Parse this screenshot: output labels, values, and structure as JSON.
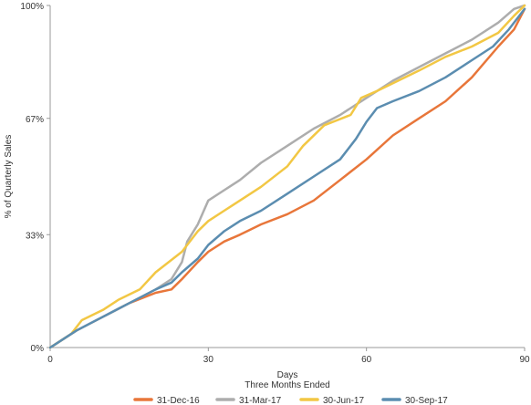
{
  "chart_data": {
    "type": "line",
    "xlabel": "Days\nThree Months Ended",
    "ylabel": "% of Quarterly Sales",
    "xlim": [
      0,
      90
    ],
    "ylim": [
      0,
      100
    ],
    "x_ticks": [
      0,
      30,
      60,
      90
    ],
    "y_ticks": [
      0,
      33,
      67,
      100
    ],
    "y_tick_labels": [
      "0%",
      "33%",
      "67%",
      "100%"
    ],
    "grid": false,
    "legend_position": "bottom",
    "series": [
      {
        "name": "31-Dec-16",
        "color": "#E8763A",
        "points": [
          [
            0,
            0
          ],
          [
            1,
            1
          ],
          [
            5,
            5
          ],
          [
            10,
            9
          ],
          [
            15,
            13
          ],
          [
            20,
            16
          ],
          [
            23,
            17
          ],
          [
            25,
            20
          ],
          [
            28,
            25
          ],
          [
            30,
            28
          ],
          [
            33,
            31
          ],
          [
            36,
            33
          ],
          [
            40,
            36
          ],
          [
            45,
            39
          ],
          [
            50,
            43
          ],
          [
            55,
            49
          ],
          [
            60,
            55
          ],
          [
            65,
            62
          ],
          [
            70,
            67
          ],
          [
            75,
            72
          ],
          [
            80,
            79
          ],
          [
            85,
            88
          ],
          [
            88,
            93
          ],
          [
            90,
            99
          ]
        ]
      },
      {
        "name": "31-Mar-17",
        "color": "#ADADAD",
        "points": [
          [
            0,
            0
          ],
          [
            1,
            1
          ],
          [
            5,
            5
          ],
          [
            10,
            9
          ],
          [
            15,
            13
          ],
          [
            20,
            17
          ],
          [
            23,
            20
          ],
          [
            25,
            25
          ],
          [
            26,
            31
          ],
          [
            28,
            36
          ],
          [
            30,
            43
          ],
          [
            33,
            46
          ],
          [
            36,
            49
          ],
          [
            40,
            54
          ],
          [
            45,
            59
          ],
          [
            50,
            64
          ],
          [
            55,
            68
          ],
          [
            60,
            73
          ],
          [
            65,
            78
          ],
          [
            70,
            82
          ],
          [
            75,
            86
          ],
          [
            80,
            90
          ],
          [
            85,
            95
          ],
          [
            88,
            99
          ],
          [
            90,
            100
          ]
        ]
      },
      {
        "name": "30-Jun-17",
        "color": "#F2C744",
        "points": [
          [
            0,
            0
          ],
          [
            1,
            1
          ],
          [
            4,
            4
          ],
          [
            6,
            8
          ],
          [
            10,
            11
          ],
          [
            13,
            14
          ],
          [
            17,
            17
          ],
          [
            20,
            22
          ],
          [
            25,
            28
          ],
          [
            28,
            34
          ],
          [
            30,
            37
          ],
          [
            33,
            40
          ],
          [
            36,
            43
          ],
          [
            40,
            47
          ],
          [
            45,
            53
          ],
          [
            48,
            59
          ],
          [
            52,
            65
          ],
          [
            57,
            68
          ],
          [
            59,
            73
          ],
          [
            62,
            75
          ],
          [
            66,
            78
          ],
          [
            70,
            81
          ],
          [
            75,
            85
          ],
          [
            80,
            88
          ],
          [
            85,
            92
          ],
          [
            88,
            97
          ],
          [
            90,
            100
          ]
        ]
      },
      {
        "name": "30-Sep-17",
        "color": "#5B8DB0",
        "points": [
          [
            0,
            0
          ],
          [
            1,
            1
          ],
          [
            5,
            5
          ],
          [
            10,
            9
          ],
          [
            15,
            13
          ],
          [
            20,
            17
          ],
          [
            23,
            19
          ],
          [
            25,
            22
          ],
          [
            28,
            26
          ],
          [
            30,
            30
          ],
          [
            33,
            34
          ],
          [
            36,
            37
          ],
          [
            40,
            40
          ],
          [
            45,
            45
          ],
          [
            50,
            50
          ],
          [
            55,
            55
          ],
          [
            58,
            61
          ],
          [
            60,
            66
          ],
          [
            62,
            70
          ],
          [
            65,
            72
          ],
          [
            70,
            75
          ],
          [
            75,
            79
          ],
          [
            80,
            84
          ],
          [
            84,
            88
          ],
          [
            87,
            93
          ],
          [
            90,
            99
          ]
        ]
      }
    ]
  }
}
